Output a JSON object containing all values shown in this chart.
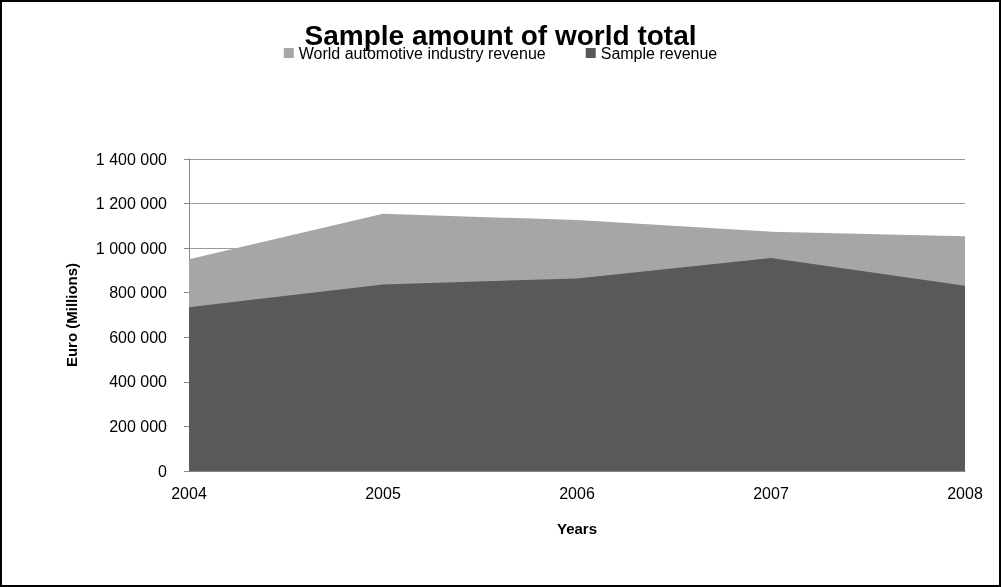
{
  "chart_data": {
    "type": "area",
    "title": "Sample amount of world total",
    "xlabel": "Years",
    "ylabel": "Euro (Millions)",
    "categories": [
      "2004",
      "2005",
      "2006",
      "2007",
      "2008"
    ],
    "series": [
      {
        "name": "World automotive industry revenue",
        "color": "#a6a6a6",
        "values": [
          950000,
          1154000,
          1126000,
          1074000,
          1053000
        ]
      },
      {
        "name": "Sample revenue",
        "color": "#595959",
        "values": [
          735000,
          837000,
          864000,
          956000,
          831000
        ]
      }
    ],
    "ylim": [
      0,
      1400000
    ],
    "yticks": [
      0,
      200000,
      400000,
      600000,
      800000,
      1000000,
      1200000,
      1400000
    ],
    "grid": "y",
    "legend": "top"
  }
}
